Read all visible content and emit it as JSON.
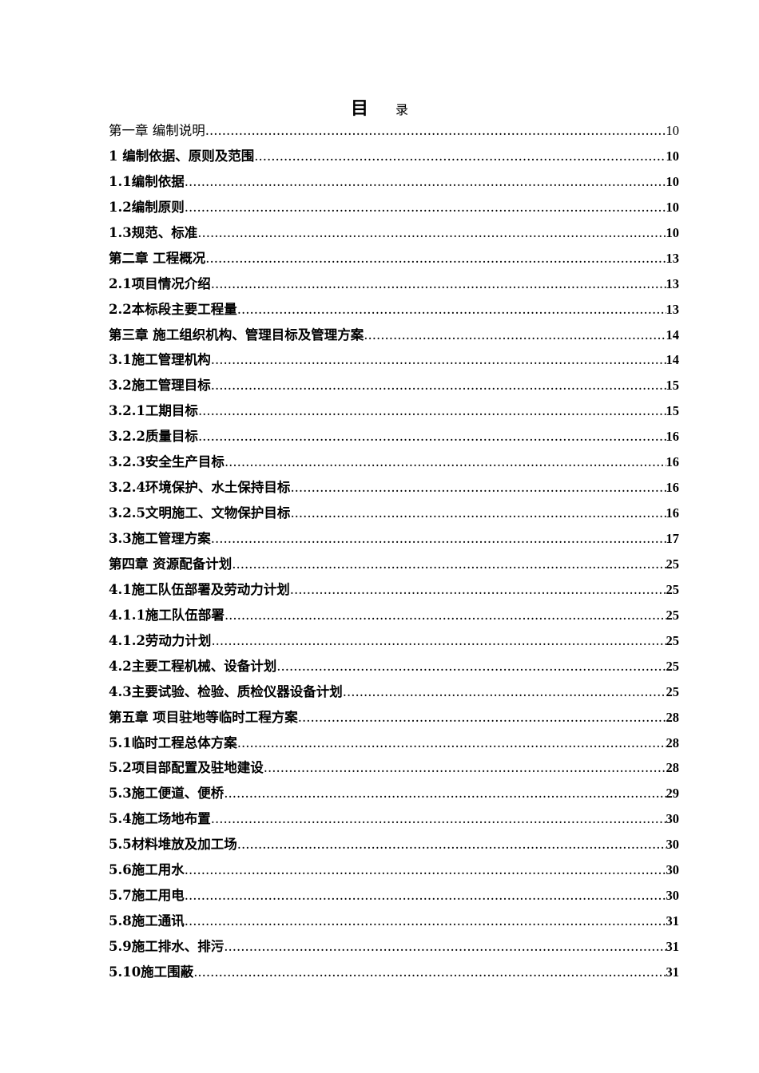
{
  "title": {
    "main": "目",
    "sub": "录"
  },
  "entries": [
    {
      "label": "第一章  编制说明",
      "page": "10",
      "bold": false
    },
    {
      "label": "1  编制依据、原则及范围",
      "page": "10",
      "bold": true
    },
    {
      "label": "1.1编制依据",
      "page": "10",
      "bold": true
    },
    {
      "label": "1.2编制原则",
      "page": "10",
      "bold": true
    },
    {
      "label": "1.3规范、标准",
      "page": "10",
      "bold": true
    },
    {
      "label": "第二章  工程概况",
      "page": "13",
      "bold": true
    },
    {
      "label": "2.1项目情况介绍",
      "page": "13",
      "bold": true
    },
    {
      "label": "2.2本标段主要工程量",
      "page": "13",
      "bold": true
    },
    {
      "label": "第三章  施工组织机构、管理目标及管理方案",
      "page": "14",
      "bold": true
    },
    {
      "label": "3.1施工管理机构",
      "page": "14",
      "bold": true
    },
    {
      "label": "3.2施工管理目标",
      "page": "15",
      "bold": true
    },
    {
      "label": "3.2.1工期目标",
      "page": "15",
      "bold": true
    },
    {
      "label": "3.2.2质量目标",
      "page": "16",
      "bold": true
    },
    {
      "label": "3.2.3安全生产目标",
      "page": "16",
      "bold": true
    },
    {
      "label": "3.2.4环境保护、水土保持目标",
      "page": "16",
      "bold": true
    },
    {
      "label": "3.2.5文明施工、文物保护目标",
      "page": "16",
      "bold": true
    },
    {
      "label": "3.3施工管理方案",
      "page": "17",
      "bold": true
    },
    {
      "label": "第四章  资源配备计划",
      "page": "25",
      "bold": true
    },
    {
      "label": "4.1施工队伍部署及劳动力计划",
      "page": "25",
      "bold": true
    },
    {
      "label": "4.1.1施工队伍部署",
      "page": "25",
      "bold": true
    },
    {
      "label": "4.1.2劳动力计划",
      "page": "25",
      "bold": true
    },
    {
      "label": "4.2主要工程机械、设备计划",
      "page": "25",
      "bold": true
    },
    {
      "label": "4.3主要试验、检验、质检仪器设备计划",
      "page": "25",
      "bold": true
    },
    {
      "label": "第五章  项目驻地等临时工程方案",
      "page": "28",
      "bold": true
    },
    {
      "label": "5.1临时工程总体方案",
      "page": "28",
      "bold": true
    },
    {
      "label": "5.2项目部配置及驻地建设",
      "page": "28",
      "bold": true
    },
    {
      "label": "5.3施工便道、便桥",
      "page": "29",
      "bold": true
    },
    {
      "label": "5.4施工场地布置",
      "page": "30",
      "bold": true
    },
    {
      "label": "5.5材料堆放及加工场",
      "page": "30",
      "bold": true
    },
    {
      "label": "5.6施工用水",
      "page": "30",
      "bold": true
    },
    {
      "label": "5.7施工用电",
      "page": "30",
      "bold": true
    },
    {
      "label": "5.8施工通讯",
      "page": "31",
      "bold": true
    },
    {
      "label": "5.9施工排水、排污",
      "page": "31",
      "bold": true
    },
    {
      "label": "5.10施工围蔽",
      "page": "31",
      "bold": true
    }
  ]
}
